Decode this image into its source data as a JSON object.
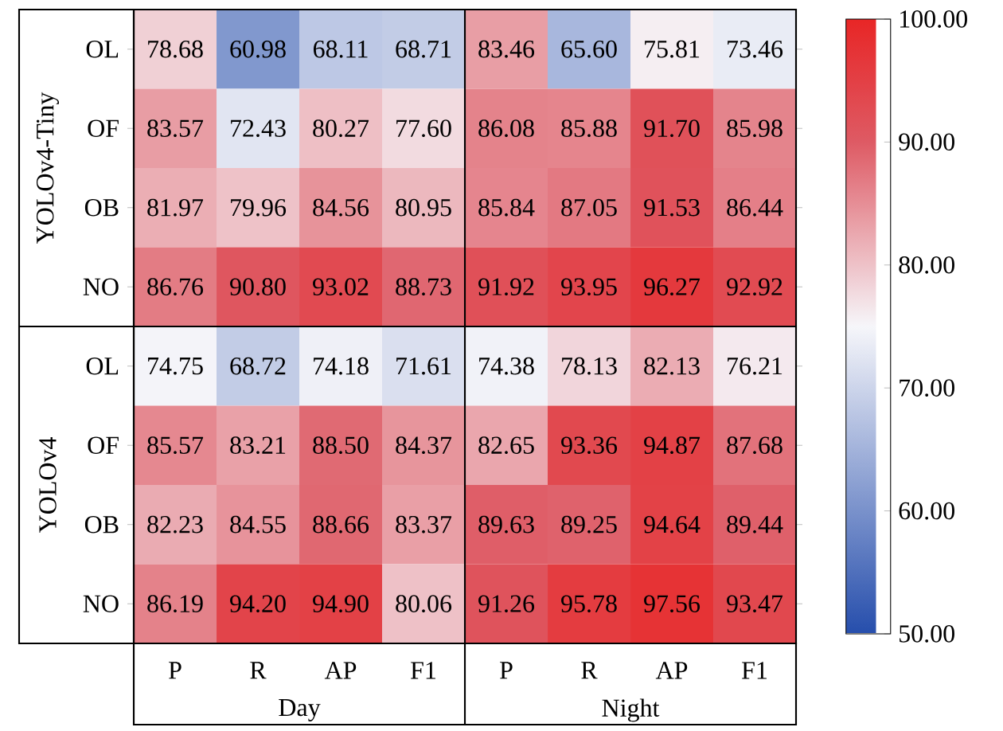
{
  "chart_data": {
    "type": "heatmap",
    "categories": [
      "P",
      "R",
      "AP",
      "F1",
      "P",
      "R",
      "AP",
      "F1"
    ],
    "y_categories": [
      "OL",
      "OF",
      "OB",
      "NO",
      "OL",
      "OF",
      "OB",
      "NO"
    ],
    "cells": [
      [
        78.68,
        60.98,
        68.11,
        68.71,
        83.46,
        65.6,
        75.81,
        73.46
      ],
      [
        83.57,
        72.43,
        80.27,
        77.6,
        86.08,
        85.88,
        91.7,
        85.98
      ],
      [
        81.97,
        79.96,
        84.56,
        80.95,
        85.84,
        87.05,
        91.53,
        86.44
      ],
      [
        86.76,
        90.8,
        93.02,
        88.73,
        91.92,
        93.95,
        96.27,
        92.92
      ],
      [
        74.75,
        68.72,
        74.18,
        71.61,
        74.38,
        78.13,
        82.13,
        76.21
      ],
      [
        85.57,
        83.21,
        88.5,
        84.37,
        82.65,
        93.36,
        94.87,
        87.68
      ],
      [
        82.23,
        84.55,
        88.66,
        83.37,
        89.63,
        89.25,
        94.64,
        89.44
      ],
      [
        86.19,
        94.2,
        94.9,
        80.06,
        91.26,
        95.78,
        97.56,
        93.47
      ]
    ],
    "cell_labels": [
      [
        "78.68",
        "60.98",
        "68.11",
        "68.71",
        "83.46",
        "65.60",
        "75.81",
        "73.46"
      ],
      [
        "83.57",
        "72.43",
        "80.27",
        "77.60",
        "86.08",
        "85.88",
        "91.70",
        "85.98"
      ],
      [
        "81.97",
        "79.96",
        "84.56",
        "80.95",
        "85.84",
        "87.05",
        "91.53",
        "86.44"
      ],
      [
        "86.76",
        "90.80",
        "93.02",
        "88.73",
        "91.92",
        "93.95",
        "96.27",
        "92.92"
      ],
      [
        "74.75",
        "68.72",
        "74.18",
        "71.61",
        "74.38",
        "78.13",
        "82.13",
        "76.21"
      ],
      [
        "85.57",
        "83.21",
        "88.50",
        "84.37",
        "82.65",
        "93.36",
        "94.87",
        "87.68"
      ],
      [
        "82.23",
        "84.55",
        "88.66",
        "83.37",
        "89.63",
        "89.25",
        "94.64",
        "89.44"
      ],
      [
        "86.19",
        "94.20",
        "94.90",
        "80.06",
        "91.26",
        "95.78",
        "97.56",
        "93.47"
      ]
    ],
    "clim": [
      50,
      100
    ],
    "cticks": [
      {
        "value": 50,
        "label": "50.00"
      },
      {
        "value": 60,
        "label": "60.00"
      },
      {
        "value": 70,
        "label": "70.00"
      },
      {
        "value": 80,
        "label": "80.00"
      },
      {
        "value": 90,
        "label": "90.00"
      },
      {
        "value": 100,
        "label": "100.00"
      }
    ],
    "annotations": [
      "YOLOv4-Tiny",
      "YOLOv4",
      "Day",
      "Night"
    ]
  }
}
